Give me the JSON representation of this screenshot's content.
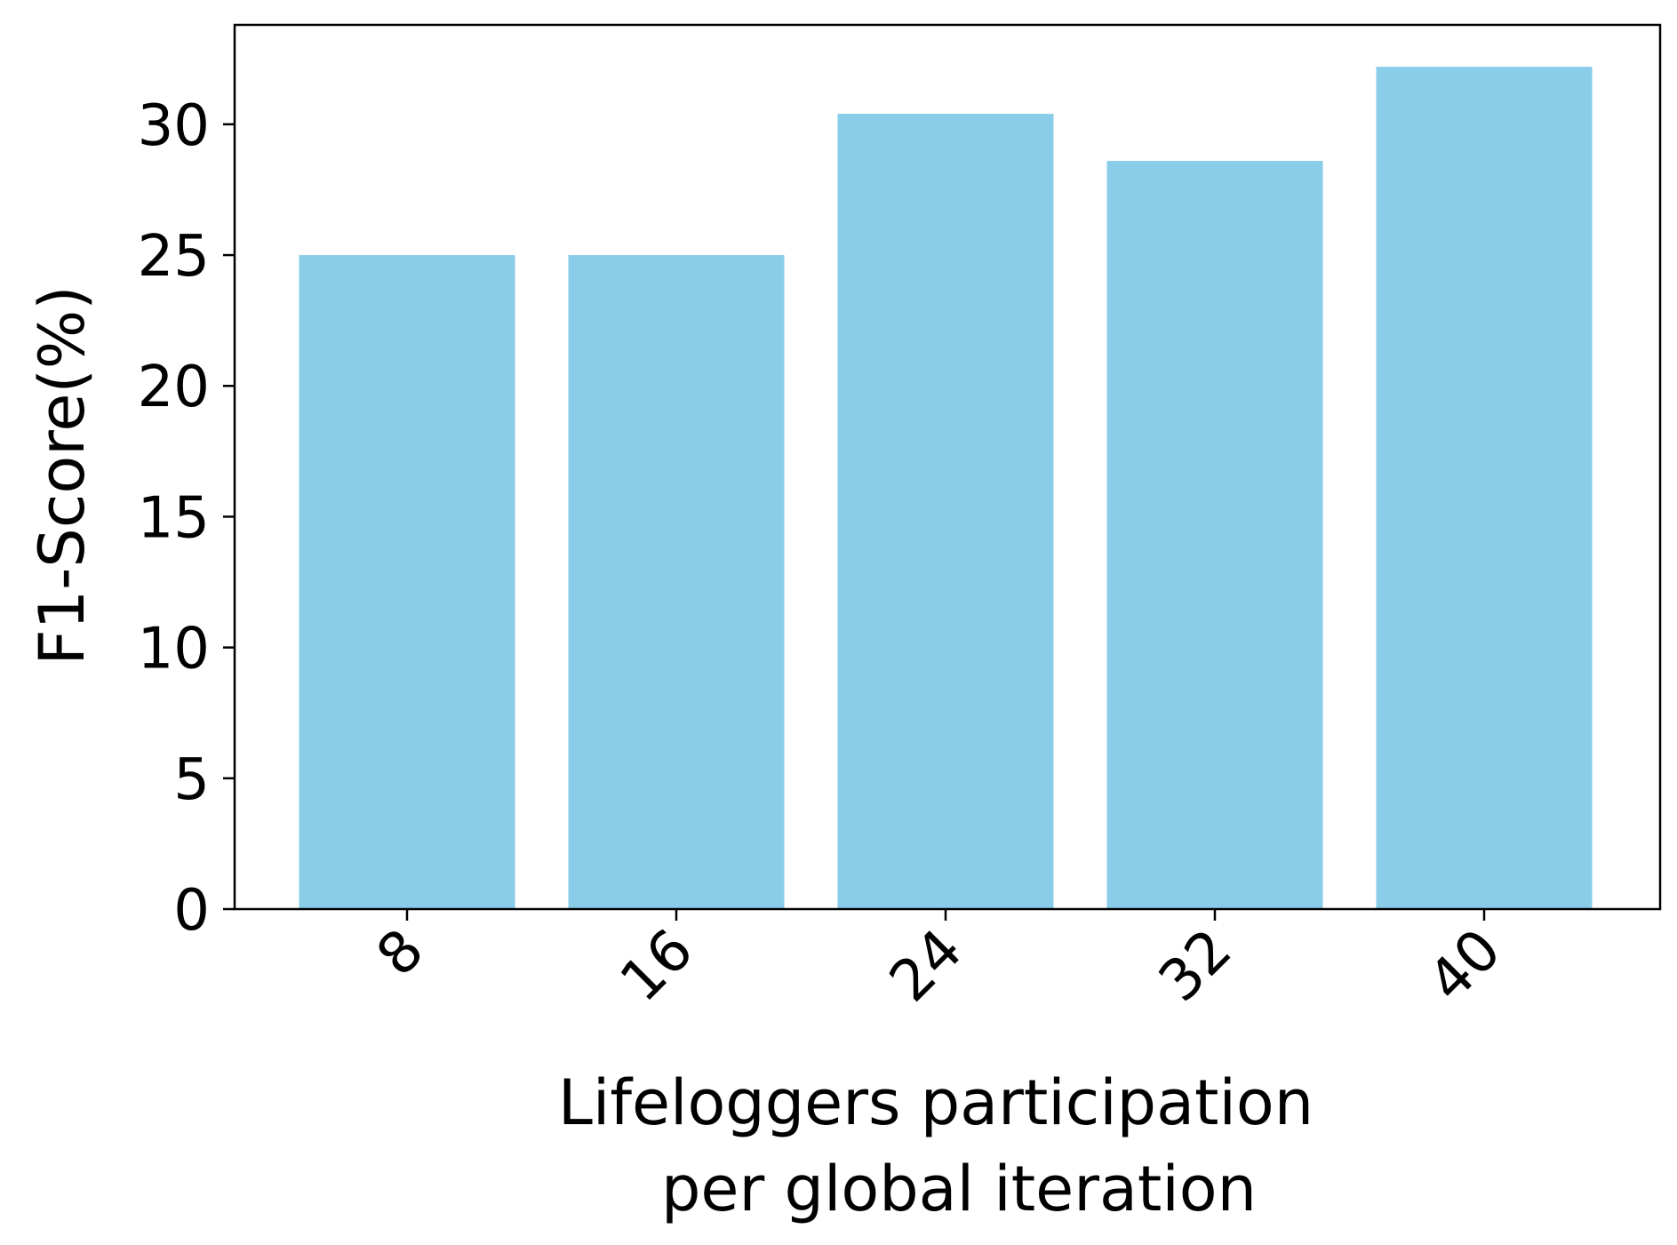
{
  "chart_data": {
    "type": "bar",
    "categories": [
      "8",
      "16",
      "24",
      "32",
      "40"
    ],
    "values": [
      25.0,
      25.0,
      30.4,
      28.6,
      32.2
    ],
    "xlabel_lines": [
      "Lifeloggers participation",
      "per global iteration"
    ],
    "ylabel": "F1-Score(%)",
    "ylim": [
      0,
      33.8
    ],
    "yticks": [
      0,
      5,
      10,
      15,
      20,
      25,
      30
    ],
    "grid": false,
    "bar_color": "#89CDE9"
  }
}
